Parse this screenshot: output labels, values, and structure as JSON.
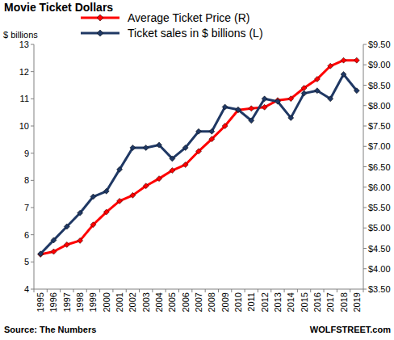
{
  "chart_data": {
    "type": "line",
    "title": "Movie Ticket Dollars",
    "y_label": "$ billions",
    "annotations": [
      "Source: The Numbers",
      "WOLFSTREET.com"
    ],
    "categories": [
      "1995",
      "1996",
      "1997",
      "1998",
      "1999",
      "2000",
      "2001",
      "2002",
      "2003",
      "2004",
      "2005",
      "2006",
      "2007",
      "2008",
      "2009",
      "2010",
      "2011",
      "2012",
      "2013",
      "2014",
      "2015",
      "2016",
      "2017",
      "2018",
      "2019"
    ],
    "series": [
      {
        "name": "Average Ticket Price (R)",
        "color": "#ff0000",
        "axis": "y2",
        "marker": "diamond",
        "line_style": "solid",
        "values": [
          4.35,
          4.42,
          4.59,
          4.69,
          5.08,
          5.39,
          5.66,
          5.8,
          6.03,
          6.21,
          6.41,
          6.55,
          6.88,
          7.18,
          7.5,
          7.89,
          7.93,
          7.96,
          8.13,
          8.17,
          8.43,
          8.65,
          8.97,
          9.11,
          9.11
        ]
      },
      {
        "name": "Ticket sales in $ billions (L)",
        "color": "#1f3864",
        "marker": "diamond",
        "line_style": "solid",
        "values": [
          5.3,
          5.8,
          6.3,
          6.8,
          7.4,
          7.6,
          8.4,
          9.2,
          9.2,
          9.3,
          8.8,
          9.2,
          9.8,
          9.8,
          10.7,
          10.6,
          10.2,
          11.0,
          10.9,
          10.3,
          11.2,
          11.3,
          11.0,
          11.9,
          11.3
        ]
      }
    ],
    "ylim": [
      4,
      13
    ],
    "yticks": [
      4,
      5,
      6,
      7,
      8,
      9,
      10,
      11,
      12,
      13
    ],
    "y2lim": [
      3.5,
      9.5
    ],
    "y2ticks": [
      {
        "value": 3.5,
        "label": "$3.50"
      },
      {
        "value": 4.0,
        "label": "$4.00"
      },
      {
        "value": 4.5,
        "label": "$4.50"
      },
      {
        "value": 5.0,
        "label": "$5.00"
      },
      {
        "value": 5.5,
        "label": "$5.50"
      },
      {
        "value": 6.0,
        "label": "$6.00"
      },
      {
        "value": 6.5,
        "label": "$6.50"
      },
      {
        "value": 7.0,
        "label": "$7.00"
      },
      {
        "value": 7.5,
        "label": "$7.50"
      },
      {
        "value": 8.0,
        "label": "$8.00"
      },
      {
        "value": 8.5,
        "label": "$8.50"
      },
      {
        "value": 9.0,
        "label": "$9.00"
      },
      {
        "value": 9.5,
        "label": "$9.50"
      }
    ],
    "grid": false,
    "legend": "top"
  }
}
